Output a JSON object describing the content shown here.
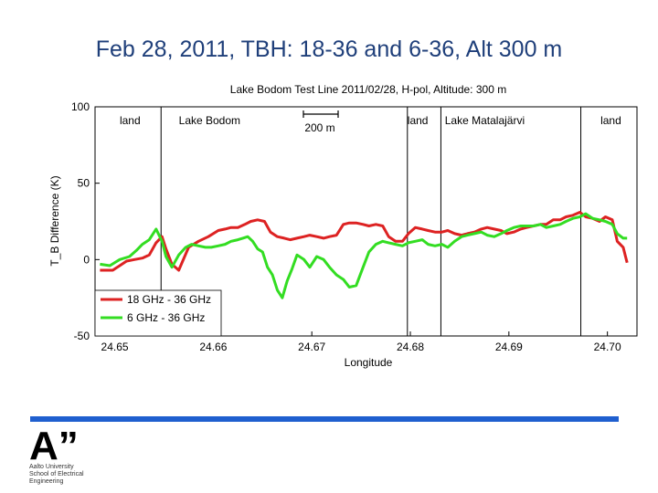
{
  "slide": {
    "title": "Feb 28, 2011, TBH: 18-36 and 6-36, Alt 300 m"
  },
  "chart_data": {
    "type": "line",
    "title": "Lake Bodom Test Line 2011/02/28, H-pol, Altitude: 300 m",
    "xlabel": "Longitude",
    "ylabel": "T_B Difference (K)",
    "xlim": [
      24.648,
      24.703
    ],
    "ylim": [
      -50,
      100
    ],
    "x_ticks": [
      "24.65",
      "24.66",
      "24.67",
      "24.68",
      "24.69",
      "24.70"
    ],
    "y_ticks": [
      "100",
      "50",
      "0",
      "-50"
    ],
    "grid": false,
    "legend_position": "bottom-left",
    "scale_bar_label": "200 m",
    "region_labels": [
      {
        "text": "land",
        "x": 24.6505
      },
      {
        "text": "Lake Bodom",
        "x": 24.6565
      },
      {
        "text": "land",
        "x": 24.6797
      },
      {
        "text": "Lake Matalajärvi",
        "x": 24.6835
      },
      {
        "text": "land",
        "x": 24.6993
      }
    ],
    "boundaries": [
      24.6547,
      24.6797,
      24.6831,
      24.6973
    ],
    "series": [
      {
        "name": "18 GHz - 36 GHz",
        "color": "#dd2222",
        "x": [
          24.6485,
          24.6498,
          24.6505,
          24.6512,
          24.652,
          24.6528,
          24.6535,
          24.6542,
          24.6548,
          24.6552,
          24.6558,
          24.6565,
          24.6575,
          24.6585,
          24.6595,
          24.6605,
          24.6612,
          24.6618,
          24.6625,
          24.6632,
          24.6638,
          24.6645,
          24.6652,
          24.6658,
          24.6665,
          24.6672,
          24.6678,
          24.6685,
          24.6692,
          24.6698,
          24.6705,
          24.6712,
          24.6718,
          24.6725,
          24.6732,
          24.6738,
          24.6745,
          24.6752,
          24.6758,
          24.6765,
          24.6772,
          24.6778,
          24.6785,
          24.6792,
          24.6798,
          24.6805,
          24.6812,
          24.6818,
          24.6825,
          24.6832,
          24.6838,
          24.6845,
          24.6852,
          24.6858,
          24.6865,
          24.6872,
          24.6878,
          24.6885,
          24.6892,
          24.6898,
          24.6905,
          24.6912,
          24.6918,
          24.6925,
          24.6932,
          24.6938,
          24.6945,
          24.6952,
          24.6958,
          24.6965,
          24.6972,
          24.6978,
          24.6985,
          24.6992,
          24.6998,
          24.7005,
          24.701,
          24.7016,
          24.702
        ],
        "y": [
          -7,
          -7,
          -4,
          -1,
          0,
          1,
          3,
          11,
          15,
          7,
          -3,
          -7,
          8,
          12,
          15,
          19,
          20,
          21,
          21,
          23,
          25,
          26,
          25,
          18,
          15,
          14,
          13,
          14,
          15,
          16,
          15,
          14,
          15,
          16,
          23,
          24,
          24,
          23,
          22,
          23,
          22,
          15,
          12,
          12,
          17,
          21,
          20,
          19,
          18,
          18,
          19,
          17,
          16,
          17,
          18,
          20,
          21,
          20,
          19,
          17,
          18,
          20,
          21,
          22,
          23,
          23,
          26,
          26,
          28,
          29,
          31,
          28,
          27,
          25,
          28,
          26,
          12,
          8,
          -2
        ]
      },
      {
        "name": "6 GHz - 36 GHz",
        "color": "#33dd22",
        "x": [
          24.6485,
          24.6495,
          24.6505,
          24.6515,
          24.6522,
          24.6528,
          24.6535,
          24.6542,
          24.6548,
          24.6552,
          24.6558,
          24.6565,
          24.6572,
          24.6578,
          24.6585,
          24.6592,
          24.6598,
          24.6605,
          24.6612,
          24.6618,
          24.6625,
          24.663,
          24.6635,
          24.664,
          24.6645,
          24.665,
          24.6655,
          24.666,
          24.6665,
          24.667,
          24.6675,
          24.668,
          24.6685,
          24.6692,
          24.6698,
          24.6705,
          24.6712,
          24.6718,
          24.6725,
          24.6732,
          24.6738,
          24.6745,
          24.6752,
          24.6758,
          24.6765,
          24.6772,
          24.6778,
          24.6785,
          24.6792,
          24.6798,
          24.6805,
          24.6812,
          24.6818,
          24.6825,
          24.6832,
          24.6838,
          24.6845,
          24.6852,
          24.6858,
          24.6865,
          24.6872,
          24.6878,
          24.6885,
          24.6892,
          24.6898,
          24.6905,
          24.6912,
          24.6918,
          24.6925,
          24.6932,
          24.6938,
          24.6945,
          24.6952,
          24.6958,
          24.6965,
          24.6972,
          24.6978,
          24.6985,
          24.6992,
          24.6998,
          24.7005,
          24.701,
          24.7016,
          24.702
        ],
        "y": [
          -3,
          -4,
          0,
          2,
          6,
          10,
          13,
          20,
          12,
          2,
          -5,
          3,
          8,
          10,
          9,
          8,
          8,
          9,
          10,
          12,
          13,
          14,
          15,
          12,
          7,
          5,
          -5,
          -10,
          -20,
          -25,
          -14,
          -6,
          3,
          0,
          -5,
          2,
          0,
          -5,
          -10,
          -13,
          -18,
          -17,
          -5,
          5,
          10,
          12,
          11,
          10,
          9,
          11,
          12,
          13,
          10,
          9,
          10,
          8,
          12,
          15,
          16,
          17,
          18,
          16,
          15,
          17,
          19,
          21,
          22,
          22,
          22,
          23,
          21,
          22,
          23,
          25,
          27,
          28,
          30,
          27,
          26,
          25,
          23,
          17,
          14,
          14
        ]
      }
    ]
  },
  "logo": {
    "text": "A”",
    "lines": [
      "Aalto University",
      "School of Electrical",
      "Engineering"
    ]
  },
  "colors": {
    "title": "#1f3f7a",
    "bar": "#1f5fcf",
    "red_series": "#dd2222",
    "green_series": "#33dd22"
  }
}
